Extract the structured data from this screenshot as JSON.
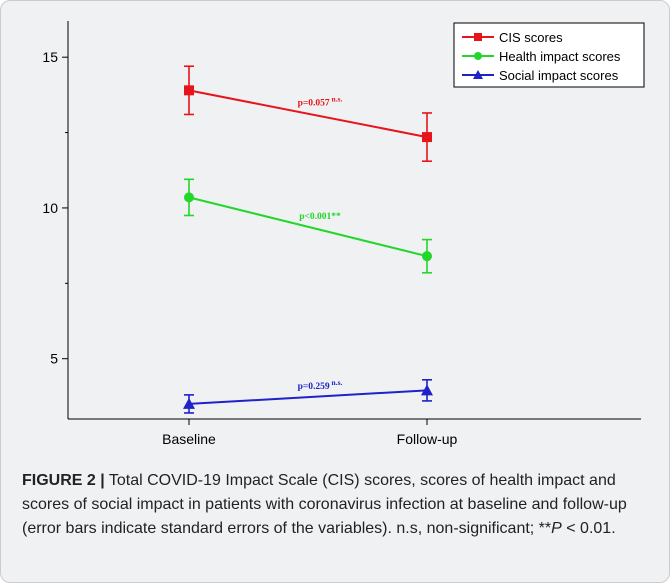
{
  "chart_data": {
    "type": "line",
    "categories": [
      "Baseline",
      "Follow-up"
    ],
    "ylim": [
      3.0,
      16.2
    ],
    "yticks": [
      5,
      10,
      15
    ],
    "minor_yticks": [
      7.5,
      12.5
    ],
    "grid": false,
    "legend_position": "top-right",
    "series": [
      {
        "name": "CIS scores",
        "color": "#e8141b",
        "marker": "square",
        "values": [
          13.9,
          12.35
        ],
        "err": [
          0.8,
          0.8
        ],
        "annotation": {
          "main": "p=0.057",
          "sup": " n.s."
        }
      },
      {
        "name": "Health impact scores",
        "color": "#22d62a",
        "marker": "circle",
        "values": [
          10.35,
          8.4
        ],
        "err": [
          0.6,
          0.55
        ],
        "annotation": {
          "main": "p<0.001**",
          "sup": ""
        }
      },
      {
        "name": "Social impact scores",
        "color": "#1f22c9",
        "marker": "triangle",
        "values": [
          3.5,
          3.95
        ],
        "err": [
          0.3,
          0.35
        ],
        "annotation": {
          "main": "p=0.259",
          "sup": " n.s."
        }
      }
    ]
  },
  "caption": {
    "label": "FIGURE 2 |",
    "text1": " Total COVID-19 Impact Scale (CIS) scores, scores of health impact and scores of social impact in patients with coronavirus infection at baseline and follow-up (error bars indicate standard errors of the variables). n.s, non-significant; **",
    "p_italic": "P",
    "text2": " < 0.01."
  }
}
